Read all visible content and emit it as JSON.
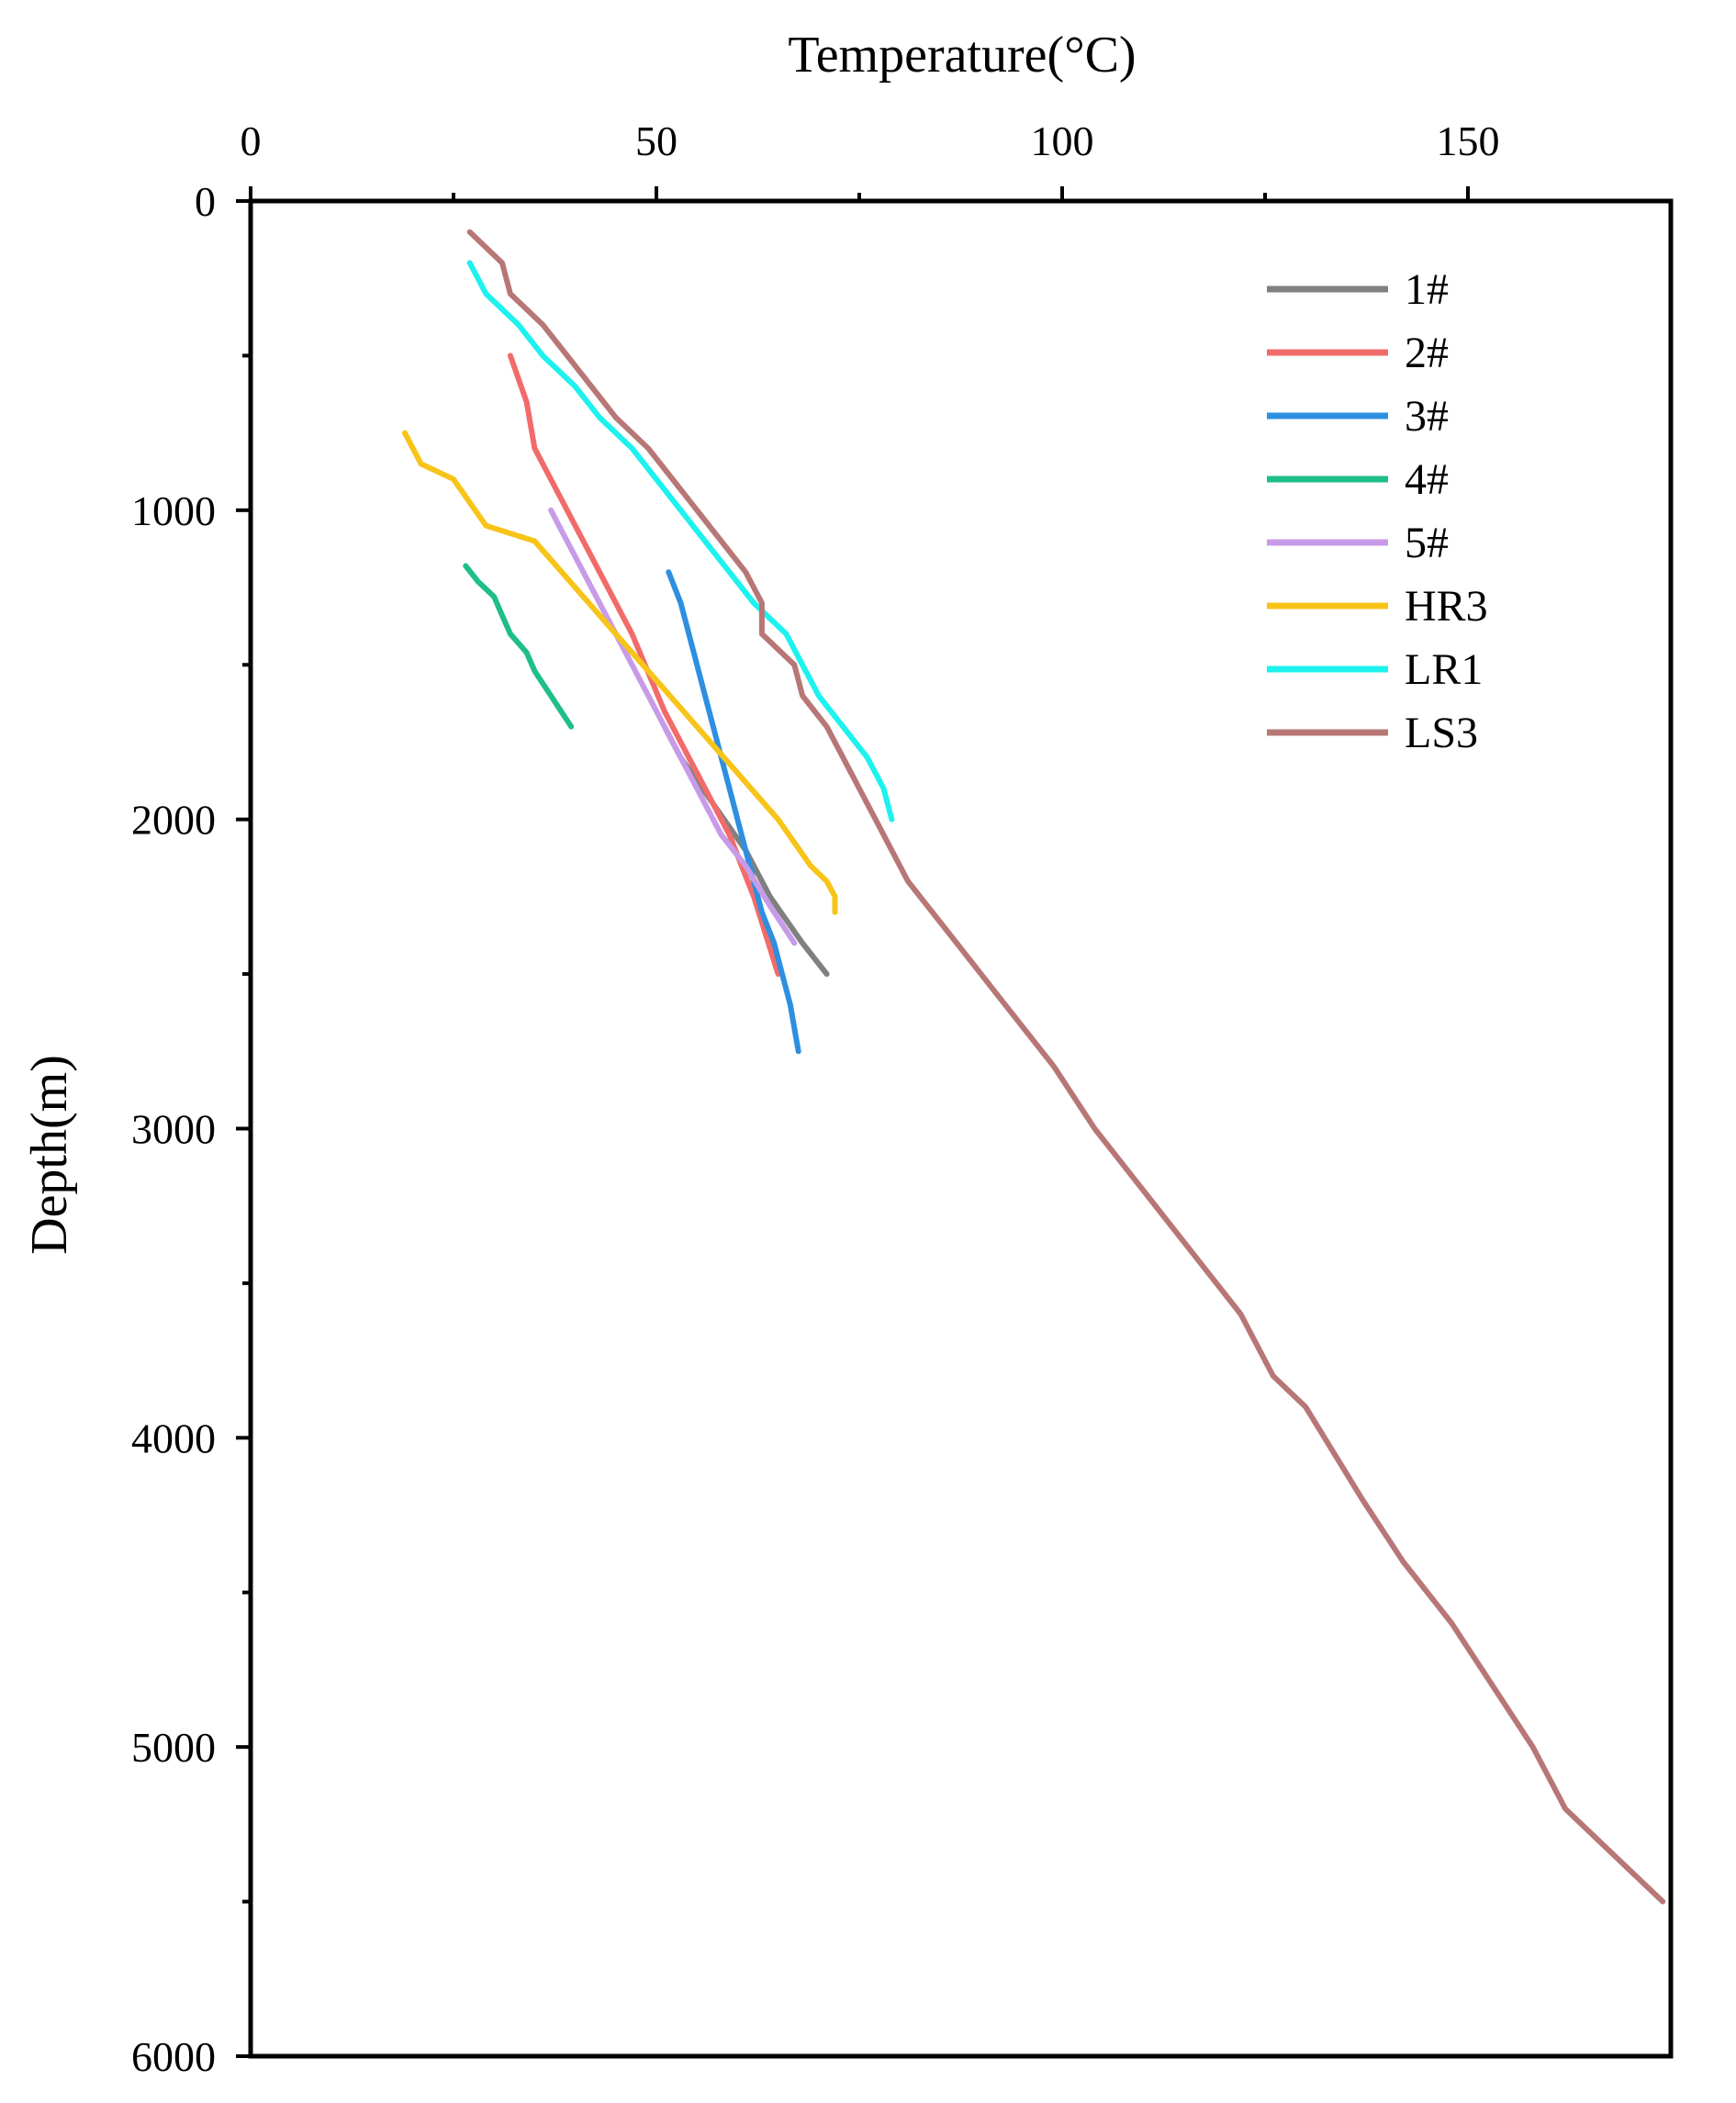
{
  "chart_data": {
    "type": "line",
    "title": "",
    "xlabel": "Temperature(°C)",
    "ylabel": "Depth(m)",
    "x_axis_position": "top",
    "y_axis_inverted": true,
    "xlim": [
      0,
      175
    ],
    "ylim": [
      0,
      6000
    ],
    "x_major_ticks": [
      0,
      50,
      100,
      150
    ],
    "x_minor_ticks": [
      25,
      75,
      125
    ],
    "y_major_ticks": [
      0,
      1000,
      2000,
      3000,
      4000,
      5000,
      6000
    ],
    "y_minor_ticks": [
      500,
      1500,
      2500,
      3500,
      4500,
      5500
    ],
    "x_tick_labels": [
      "0",
      "50",
      "100",
      "150"
    ],
    "y_tick_labels": [
      "0",
      "1000",
      "2000",
      "3000",
      "4000",
      "5000",
      "6000"
    ],
    "grid": false,
    "legend_position": "top-right",
    "series": [
      {
        "name": "1#",
        "color": "#808080",
        "points": [
          [
            51,
            1700
          ],
          [
            53,
            1800
          ],
          [
            57,
            1950
          ],
          [
            61,
            2100
          ],
          [
            64,
            2250
          ],
          [
            68,
            2400
          ],
          [
            71,
            2500
          ]
        ]
      },
      {
        "name": "2#",
        "color": "#f26b6b",
        "points": [
          [
            32,
            500
          ],
          [
            34,
            650
          ],
          [
            35,
            800
          ],
          [
            38,
            950
          ],
          [
            42,
            1150
          ],
          [
            47,
            1400
          ],
          [
            51,
            1650
          ],
          [
            55,
            1850
          ],
          [
            59,
            2050
          ],
          [
            62,
            2250
          ],
          [
            65,
            2500
          ]
        ]
      },
      {
        "name": "3#",
        "color": "#2e8fe0",
        "points": [
          [
            51.5,
            1200
          ],
          [
            53,
            1300
          ],
          [
            54,
            1400
          ],
          [
            55,
            1500
          ],
          [
            56,
            1600
          ],
          [
            57,
            1700
          ],
          [
            58,
            1800
          ],
          [
            59,
            1900
          ],
          [
            60,
            2000
          ],
          [
            61,
            2100
          ],
          [
            62,
            2200
          ],
          [
            63,
            2300
          ],
          [
            64.5,
            2400
          ],
          [
            65.5,
            2500
          ],
          [
            66.5,
            2600
          ],
          [
            67.5,
            2750
          ]
        ]
      },
      {
        "name": "4#",
        "color": "#1fbf87",
        "points": [
          [
            26.5,
            1180
          ],
          [
            28,
            1230
          ],
          [
            30,
            1280
          ],
          [
            31,
            1340
          ],
          [
            32,
            1400
          ],
          [
            34,
            1460
          ],
          [
            35,
            1520
          ],
          [
            36,
            1560
          ],
          [
            37,
            1600
          ],
          [
            38,
            1640
          ],
          [
            39,
            1680
          ],
          [
            39.5,
            1700
          ]
        ]
      },
      {
        "name": "5#",
        "color": "#c89be8",
        "points": [
          [
            37,
            1000
          ],
          [
            38,
            1050
          ],
          [
            40,
            1150
          ],
          [
            43,
            1300
          ],
          [
            46,
            1450
          ],
          [
            49,
            1600
          ],
          [
            52,
            1750
          ],
          [
            55,
            1900
          ],
          [
            58,
            2050
          ],
          [
            61,
            2150
          ],
          [
            64,
            2280
          ],
          [
            67,
            2400
          ]
        ]
      },
      {
        "name": "HR3",
        "color": "#f7c419",
        "points": [
          [
            19,
            750
          ],
          [
            21,
            850
          ],
          [
            25,
            900
          ],
          [
            29,
            1050
          ],
          [
            35,
            1100
          ],
          [
            40,
            1250
          ],
          [
            45,
            1400
          ],
          [
            50,
            1550
          ],
          [
            55,
            1700
          ],
          [
            60,
            1850
          ],
          [
            65,
            2000
          ],
          [
            69,
            2150
          ],
          [
            71,
            2200
          ],
          [
            72,
            2250
          ],
          [
            72,
            2300
          ]
        ]
      },
      {
        "name": "LR1",
        "color": "#1df2ee",
        "points": [
          [
            27,
            200
          ],
          [
            29,
            300
          ],
          [
            33,
            400
          ],
          [
            36,
            500
          ],
          [
            40,
            600
          ],
          [
            43,
            700
          ],
          [
            47,
            800
          ],
          [
            50,
            900
          ],
          [
            53,
            1000
          ],
          [
            56,
            1100
          ],
          [
            59,
            1200
          ],
          [
            62,
            1300
          ],
          [
            66,
            1400
          ],
          [
            68,
            1500
          ],
          [
            70,
            1600
          ],
          [
            73,
            1700
          ],
          [
            76,
            1800
          ],
          [
            78,
            1900
          ],
          [
            79,
            2000
          ]
        ]
      },
      {
        "name": "LS3",
        "color": "#b87777",
        "points": [
          [
            27,
            100
          ],
          [
            31,
            200
          ],
          [
            32,
            300
          ],
          [
            34,
            350
          ],
          [
            36,
            400
          ],
          [
            39,
            500
          ],
          [
            42,
            600
          ],
          [
            45,
            700
          ],
          [
            49,
            800
          ],
          [
            52,
            900
          ],
          [
            55,
            1000
          ],
          [
            58,
            1100
          ],
          [
            61,
            1200
          ],
          [
            63,
            1300
          ],
          [
            63,
            1400
          ],
          [
            67,
            1500
          ],
          [
            68,
            1600
          ],
          [
            71,
            1700
          ],
          [
            73,
            1800
          ],
          [
            75,
            1900
          ],
          [
            77,
            2000
          ],
          [
            81,
            2200
          ],
          [
            87,
            2400
          ],
          [
            93,
            2600
          ],
          [
            99,
            2800
          ],
          [
            104,
            3000
          ],
          [
            110,
            3200
          ],
          [
            116,
            3400
          ],
          [
            122,
            3600
          ],
          [
            126,
            3800
          ],
          [
            130,
            3900
          ],
          [
            137,
            4200
          ],
          [
            142,
            4400
          ],
          [
            148,
            4600
          ],
          [
            153,
            4800
          ],
          [
            158,
            5000
          ],
          [
            162,
            5200
          ],
          [
            166,
            5300
          ],
          [
            170,
            5400
          ],
          [
            174,
            5500
          ]
        ]
      }
    ]
  }
}
